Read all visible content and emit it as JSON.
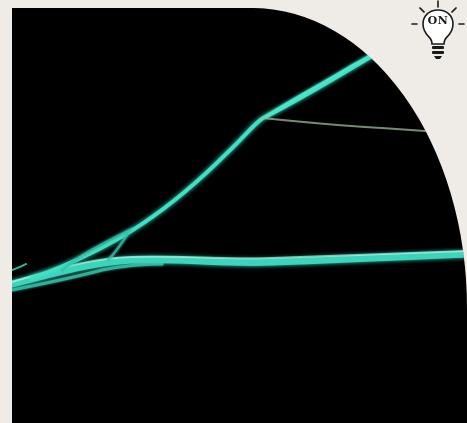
{
  "badge": {
    "label": "ON",
    "icon": "lightbulb-icon"
  },
  "colors": {
    "background": "#efece7",
    "photo_background": "#000000",
    "fiber_glow": "#3fe0c4",
    "fiber_dim": "#9fb8a0"
  }
}
